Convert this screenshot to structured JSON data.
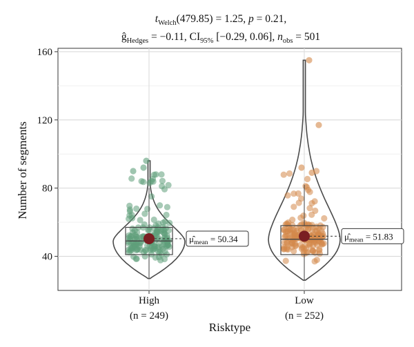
{
  "chart_data": {
    "type": "violin",
    "subtitle": {
      "line1": {
        "t_symbol": "t",
        "t_sub": "Welch",
        "df": "(479.85) = 1.25, ",
        "p_symbol": "p",
        "p_value": " = 0.21,"
      },
      "line2": {
        "g_symbol": "ĝ",
        "g_sub": "Hedges",
        "g_value": " = −0.11, CI",
        "ci_sub": "95%",
        "ci_value": " [−0.29, 0.06], ",
        "n_symbol": "n",
        "n_sub": "obs",
        "n_value": " = 501"
      }
    },
    "xlabel": "Risktype",
    "ylabel": "Number of segments",
    "ylim": [
      20,
      162
    ],
    "yticks": [
      "40",
      "80",
      "120",
      "160"
    ],
    "ytick_values": [
      40,
      80,
      120,
      160
    ],
    "grid": true,
    "groups": [
      {
        "name": "High",
        "n_label": "(n = 249)",
        "n": 249,
        "color": "#5e9e7a",
        "mean": 50.34,
        "mean_label_mu": "μ̂",
        "mean_label_sub": "mean",
        "mean_label_value": " = 50.34",
        "box": {
          "q1": 41,
          "median": 49,
          "q3": 57,
          "whisker_low": 27,
          "whisker_high": 80
        },
        "violin_range": [
          27,
          96
        ]
      },
      {
        "name": "Low",
        "n_label": "(n = 252)",
        "n": 252,
        "color": "#d4884a",
        "mean": 51.83,
        "mean_label_mu": "μ̂",
        "mean_label_sub": "mean",
        "mean_label_value": " = 51.83",
        "box": {
          "q1": 41,
          "median": 50,
          "q3": 58,
          "whisker_low": 26,
          "whisker_high": 82
        },
        "violin_range": [
          26,
          155
        ]
      }
    ],
    "mean_point_color": "#7a1f22"
  }
}
